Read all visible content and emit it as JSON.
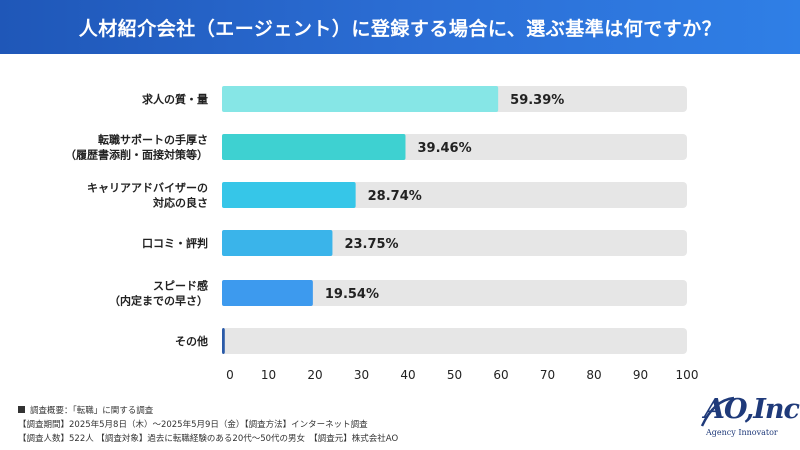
{
  "header": {
    "title": "人材紹介会社（エージェント）に登録する場合に、選ぶ基準は何ですか？"
  },
  "chart_data": {
    "type": "bar",
    "orientation": "horizontal",
    "categories": [
      [
        "求人の質・量"
      ],
      [
        "転職サポートの手厚さ",
        "（履歴書添削・面接対策等）"
      ],
      [
        "キャリアアドバイザーの",
        "対応の良さ"
      ],
      [
        "口コミ・評判"
      ],
      [
        "スピード感",
        "（内定までの早さ）"
      ],
      [
        "その他"
      ]
    ],
    "values": [
      59.39,
      39.46,
      28.74,
      23.75,
      19.54,
      0.6
    ],
    "value_labels": [
      "59.39%",
      "39.46%",
      "28.74%",
      "23.75%",
      "19.54%",
      ""
    ],
    "bar_colors": [
      "#86e6e6",
      "#3ed1d1",
      "#36c6e8",
      "#3ab4ea",
      "#3d9aee",
      "#2a5aa8"
    ],
    "track_color": "#e6e6e6",
    "xlim": [
      0,
      100
    ],
    "xticks": [
      "0",
      "10",
      "20",
      "30",
      "40",
      "50",
      "60",
      "70",
      "80",
      "90",
      "100"
    ],
    "grid": false,
    "title": "",
    "xlabel": "",
    "ylabel": ""
  },
  "notes": {
    "line1": "調査概要：「転職」に関する調査",
    "line2": "【調査期間】2025年5月8日（木）～2025年5月9日（金）【調査方法】インターネット調査",
    "line3": "【調査人数】522人 【調査対象】過去に転職経験のある20代～50代の男女　【調査元】株式会社AO"
  },
  "logo": {
    "main": "AO,Inc.",
    "sub": "Agency Innovator"
  }
}
